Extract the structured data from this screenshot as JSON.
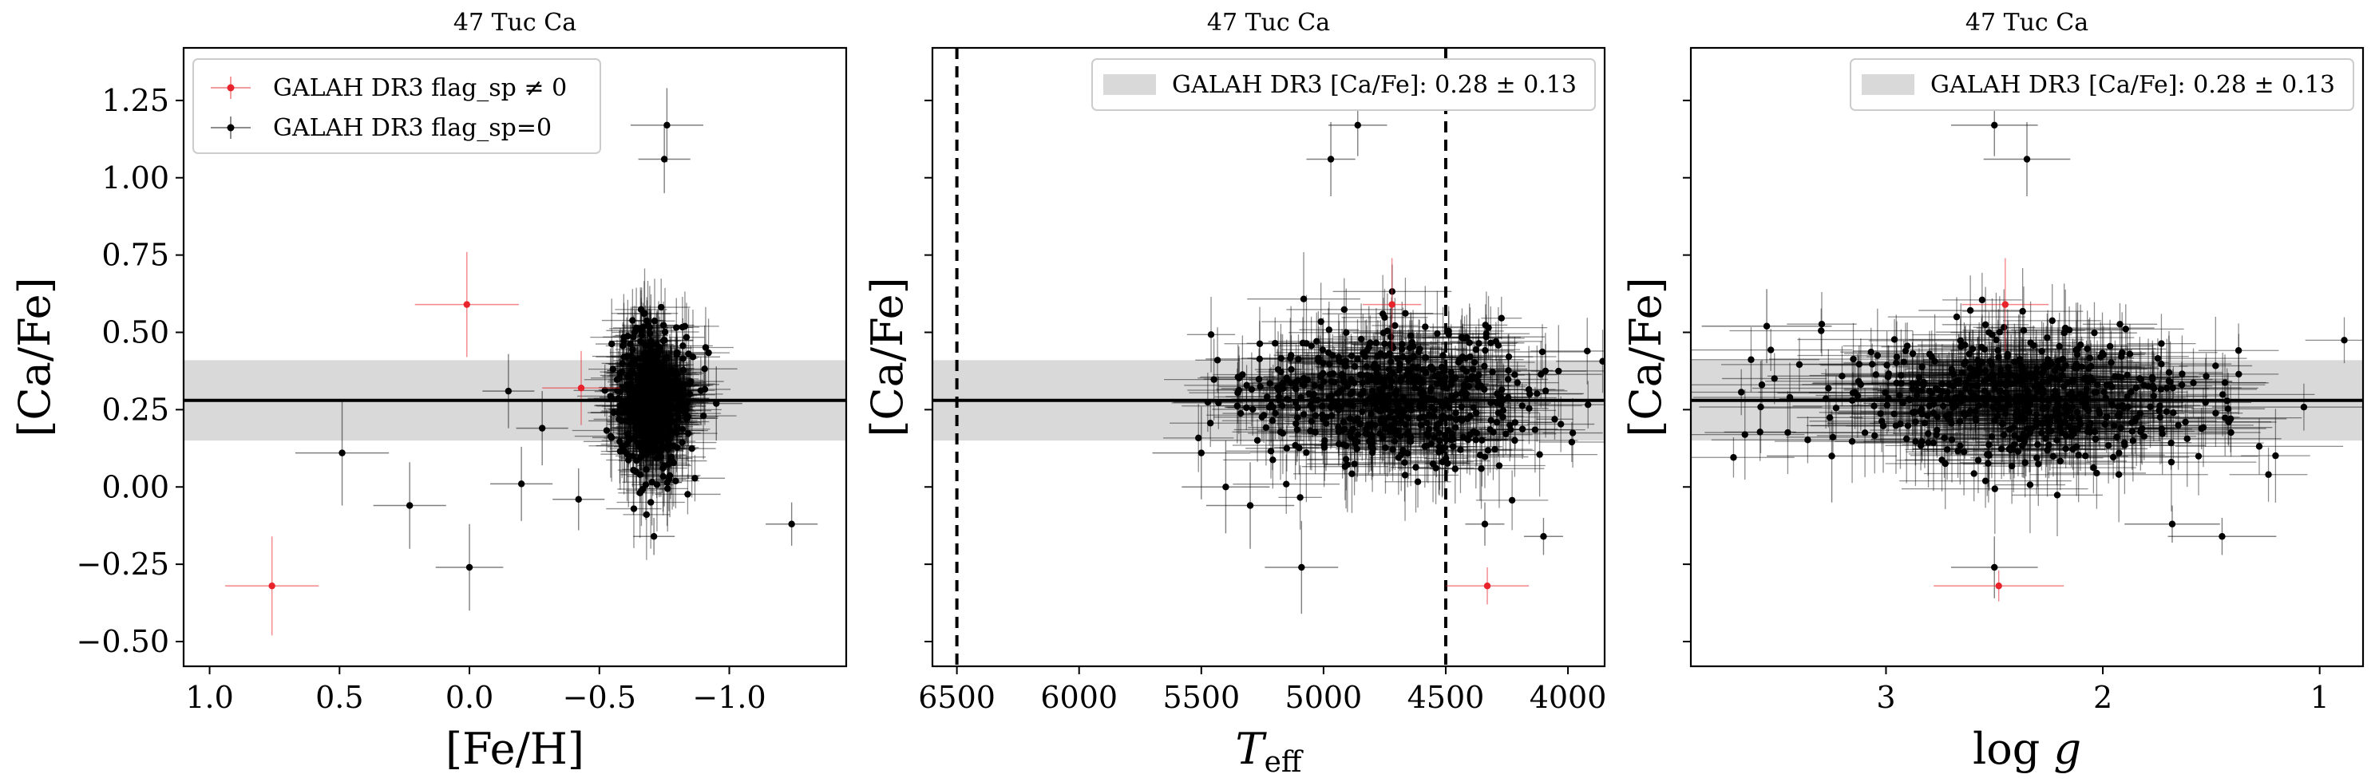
{
  "chart_data": [
    {
      "type": "scatter",
      "title": "47 Tuc Ca",
      "xlabel": "[Fe/H]",
      "ylabel": "[Ca/Fe]",
      "xlim": [
        1.1,
        -1.45
      ],
      "ylim": [
        -0.58,
        1.42
      ],
      "x_ticks": [
        1.0,
        0.5,
        0.0,
        -0.5,
        -1.0
      ],
      "x_tick_labels": [
        "1.0",
        "0.5",
        "0.0",
        "−0.5",
        "−1.0"
      ],
      "y_ticks": [
        -0.5,
        -0.25,
        0.0,
        0.25,
        0.5,
        0.75,
        1.0,
        1.25
      ],
      "y_tick_labels": [
        "−0.50",
        "−0.25",
        "0.00",
        "0.25",
        "0.50",
        "0.75",
        "1.00",
        "1.25"
      ],
      "legend": {
        "position": "upper-left",
        "entries": [
          {
            "label": "GALAH DR3 flag_sp ≠ 0",
            "color": "#e8232b",
            "marker": "errorbar-point"
          },
          {
            "label": "GALAH DR3 flag_sp=0",
            "color": "#000000",
            "marker": "errorbar-point"
          }
        ]
      },
      "reference_band": {
        "center": 0.28,
        "halfwidth": 0.13,
        "color": "#d9d9d9"
      },
      "reference_line": 0.28,
      "series": [
        {
          "name": "GALAH DR3 flag_sp ≠ 0",
          "color": "#e8232b",
          "points": [
            {
              "x": 0.76,
              "y": -0.32,
              "xerr": 0.18,
              "yerr": 0.16
            },
            {
              "x": 0.01,
              "y": 0.59,
              "xerr": 0.2,
              "yerr": 0.17
            },
            {
              "x": -0.43,
              "y": 0.32,
              "xerr": 0.15,
              "yerr": 0.12
            }
          ]
        },
        {
          "name": "GALAH DR3 flag_sp=0",
          "color": "#000000",
          "outliers": [
            {
              "x": 0.49,
              "y": 0.11,
              "xerr": 0.18,
              "yerr": 0.17
            },
            {
              "x": 0.23,
              "y": -0.06,
              "xerr": 0.14,
              "yerr": 0.14
            },
            {
              "x": 0.0,
              "y": -0.26,
              "xerr": 0.13,
              "yerr": 0.14
            },
            {
              "x": -0.76,
              "y": 1.17,
              "xerr": 0.14,
              "yerr": 0.12
            },
            {
              "x": -0.75,
              "y": 1.06,
              "xerr": 0.1,
              "yerr": 0.11
            },
            {
              "x": -0.71,
              "y": -0.16,
              "xerr": 0.08,
              "yerr": 0.06
            },
            {
              "x": -1.24,
              "y": -0.12,
              "xerr": 0.1,
              "yerr": 0.07
            },
            {
              "x": -0.95,
              "y": 0.27,
              "xerr": 0.1,
              "yerr": 0.12
            },
            {
              "x": -0.15,
              "y": 0.31,
              "xerr": 0.1,
              "yerr": 0.12
            },
            {
              "x": -0.2,
              "y": 0.01,
              "xerr": 0.12,
              "yerr": 0.12
            },
            {
              "x": -0.28,
              "y": 0.19,
              "xerr": 0.1,
              "yerr": 0.12
            },
            {
              "x": -0.42,
              "y": -0.04,
              "xerr": 0.1,
              "yerr": 0.1
            }
          ],
          "cluster": {
            "x_mean": -0.7,
            "x_sd": 0.07,
            "y_mean": 0.28,
            "y_sd": 0.11,
            "n": 600,
            "xerr_range": [
              0.05,
              0.14
            ],
            "yerr_range": [
              0.06,
              0.16
            ]
          }
        }
      ]
    },
    {
      "type": "scatter",
      "title": "47 Tuc Ca",
      "xlabel": "T_eff",
      "ylabel": "[Ca/Fe]",
      "xlim": [
        6600,
        3850
      ],
      "ylim": [
        -0.58,
        1.42
      ],
      "x_ticks": [
        6500,
        6000,
        5500,
        5000,
        4500,
        4000
      ],
      "x_tick_labels": [
        "6500",
        "6000",
        "5500",
        "5000",
        "4500",
        "4000"
      ],
      "y_ticks": [
        -0.5,
        -0.25,
        0.0,
        0.25,
        0.5,
        0.75,
        1.0,
        1.25
      ],
      "legend": {
        "position": "upper-right",
        "entries": [
          {
            "label": "GALAH DR3 [Ca/Fe]: 0.28 ± 0.13",
            "color": "#d9d9d9",
            "marker": "band"
          }
        ]
      },
      "reference_band": {
        "center": 0.28,
        "halfwidth": 0.13,
        "color": "#d9d9d9"
      },
      "reference_line": 0.28,
      "vertical_lines": [
        6500,
        4500
      ],
      "series": [
        {
          "name": "flag_sp ≠ 0",
          "color": "#e8232b",
          "points": [
            {
              "x": 4330,
              "y": -0.32,
              "xerr": 170,
              "yerr": 0.06
            },
            {
              "x": 4720,
              "y": 0.59,
              "xerr": 120,
              "yerr": 0.15
            }
          ]
        },
        {
          "name": "flag_sp=0",
          "color": "#000000",
          "outliers": [
            {
              "x": 4860,
              "y": 1.17,
              "xerr": 120,
              "yerr": 0.1
            },
            {
              "x": 4970,
              "y": 1.06,
              "xerr": 100,
              "yerr": 0.12
            },
            {
              "x": 5090,
              "y": -0.26,
              "xerr": 150,
              "yerr": 0.15
            },
            {
              "x": 4100,
              "y": -0.16,
              "xerr": 80,
              "yerr": 0.06
            },
            {
              "x": 4340,
              "y": -0.12,
              "xerr": 80,
              "yerr": 0.07
            },
            {
              "x": 5500,
              "y": 0.11,
              "xerr": 200,
              "yerr": 0.15
            },
            {
              "x": 5400,
              "y": 0.0,
              "xerr": 180,
              "yerr": 0.15
            },
            {
              "x": 5300,
              "y": -0.06,
              "xerr": 180,
              "yerr": 0.14
            }
          ],
          "cluster": {
            "x_mean": 4720,
            "x_sd": 300,
            "y_mean": 0.28,
            "y_sd": 0.11,
            "n": 600,
            "xerr_range": [
              70,
              260
            ],
            "yerr_range": [
              0.06,
              0.16
            ]
          }
        }
      ]
    },
    {
      "type": "scatter",
      "title": "47 Tuc Ca",
      "xlabel": "log g",
      "ylabel": "[Ca/Fe]",
      "xlim": [
        3.9,
        0.8
      ],
      "ylim": [
        -0.58,
        1.42
      ],
      "x_ticks": [
        3,
        2,
        1
      ],
      "x_tick_labels": [
        "3",
        "2",
        "1"
      ],
      "y_ticks": [
        -0.5,
        -0.25,
        0.0,
        0.25,
        0.5,
        0.75,
        1.0,
        1.25
      ],
      "legend": {
        "position": "upper-right",
        "entries": [
          {
            "label": "GALAH DR3 [Ca/Fe]: 0.28 ± 0.13",
            "color": "#d9d9d9",
            "marker": "band"
          }
        ]
      },
      "reference_band": {
        "center": 0.28,
        "halfwidth": 0.13,
        "color": "#d9d9d9"
      },
      "reference_line": 0.28,
      "series": [
        {
          "name": "flag_sp ≠ 0",
          "color": "#e8232b",
          "points": [
            {
              "x": 2.48,
              "y": -0.32,
              "xerr": 0.3,
              "yerr": 0.05
            },
            {
              "x": 2.45,
              "y": 0.59,
              "xerr": 0.2,
              "yerr": 0.15
            }
          ]
        },
        {
          "name": "flag_sp=0",
          "color": "#000000",
          "outliers": [
            {
              "x": 2.5,
              "y": 1.17,
              "xerr": 0.2,
              "yerr": 0.1
            },
            {
              "x": 2.35,
              "y": 1.06,
              "xerr": 0.2,
              "yerr": 0.12
            },
            {
              "x": 2.5,
              "y": -0.26,
              "xerr": 0.2,
              "yerr": 0.1
            },
            {
              "x": 1.68,
              "y": -0.12,
              "xerr": 0.22,
              "yerr": 0.06
            },
            {
              "x": 1.45,
              "y": -0.16,
              "xerr": 0.25,
              "yerr": 0.06
            },
            {
              "x": 3.55,
              "y": 0.52,
              "xerr": 0.3,
              "yerr": 0.12
            },
            {
              "x": 3.25,
              "y": 0.1,
              "xerr": 0.3,
              "yerr": 0.15
            }
          ],
          "cluster": {
            "x_mean": 2.35,
            "x_sd": 0.45,
            "y_mean": 0.28,
            "y_sd": 0.11,
            "n": 600,
            "xerr_range": [
              0.12,
              0.45
            ],
            "yerr_range": [
              0.06,
              0.16
            ]
          }
        }
      ]
    }
  ]
}
